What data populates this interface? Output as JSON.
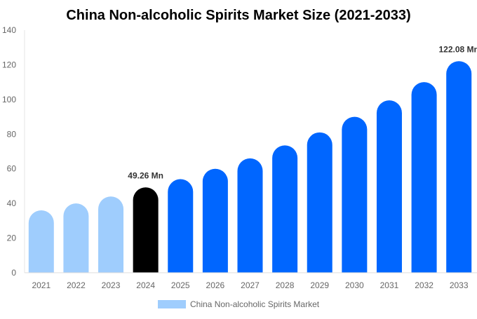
{
  "chart_data": {
    "type": "bar",
    "title": "China Non-alcoholic Spirits Market Size (2021-2033)",
    "xlabel": "",
    "ylabel": "",
    "ylim": [
      0,
      140
    ],
    "yticks": [
      0,
      20,
      40,
      60,
      80,
      100,
      120,
      140
    ],
    "grid": false,
    "legend_position": "bottom",
    "categories": [
      "2021",
      "2022",
      "2023",
      "2024",
      "2025",
      "2026",
      "2027",
      "2028",
      "2029",
      "2030",
      "2031",
      "2032",
      "2033"
    ],
    "series": [
      {
        "name": "China Non-alcoholic Spirits Market",
        "values": [
          36,
          40,
          44,
          49.26,
          54,
          60,
          66,
          73.5,
          81,
          90,
          99.5,
          110,
          122.08
        ]
      }
    ],
    "data_labels": [
      {
        "category": "2024",
        "text": "49.26 Mn"
      },
      {
        "category": "2033",
        "text": "122.08 Mn"
      }
    ],
    "colors": {
      "historical": "#9fcdfd",
      "base_year": "#000000",
      "forecast": "#0066ff",
      "legend": "#9fcdfd"
    }
  }
}
